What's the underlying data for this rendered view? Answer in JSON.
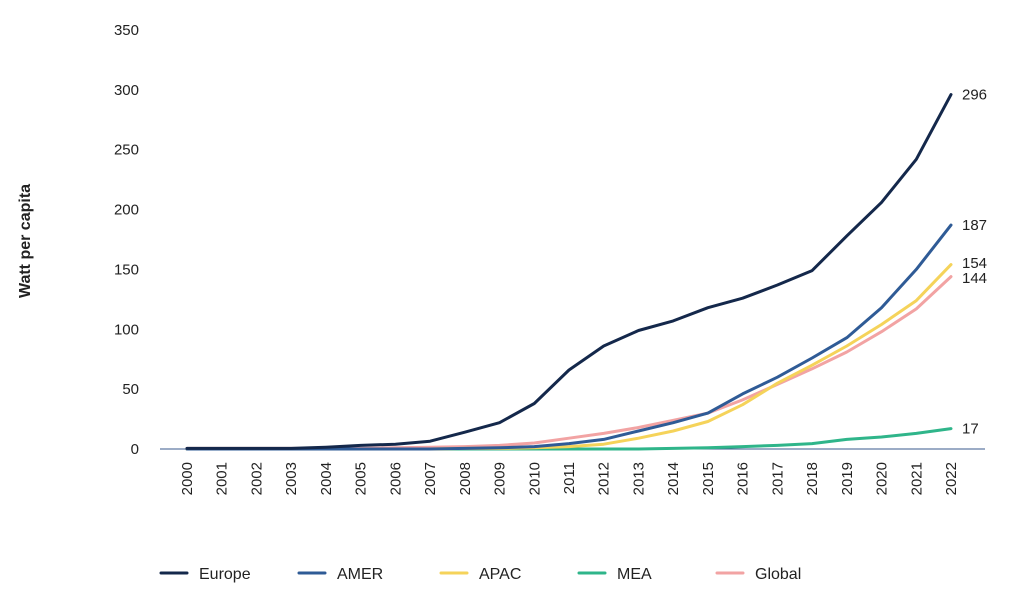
{
  "chart_data": {
    "type": "line",
    "title": "",
    "xlabel": "",
    "ylabel": "Watt per capita",
    "ylim": [
      0,
      350
    ],
    "yticks": [
      0,
      50,
      100,
      150,
      200,
      250,
      300,
      350
    ],
    "grid": false,
    "legend_position": "bottom",
    "x": [
      "2000",
      "2001",
      "2002",
      "2003",
      "2004",
      "2005",
      "2006",
      "2007",
      "2008",
      "2009",
      "2010",
      "2011",
      "2012",
      "2013",
      "2014",
      "2015",
      "2016",
      "2017",
      "2018",
      "2019",
      "2020",
      "2021",
      "2022"
    ],
    "series": [
      {
        "name": "Europe",
        "color": "#14284b",
        "end_label": "296",
        "values": [
          0.5,
          0.5,
          0.5,
          0.5,
          1.5,
          3,
          4,
          6.5,
          14,
          22,
          38,
          66,
          86,
          99,
          107,
          118,
          126,
          137,
          149,
          178,
          206,
          242,
          296
        ]
      },
      {
        "name": "AMER",
        "color": "#2f5b96",
        "end_label": "187",
        "values": [
          0,
          0,
          0,
          0,
          0,
          0,
          0,
          0,
          0.5,
          1,
          2,
          4.5,
          8,
          15,
          22,
          30,
          46,
          60,
          76,
          93,
          118,
          150,
          187
        ]
      },
      {
        "name": "APAC",
        "color": "#f5d35a",
        "end_label": "154",
        "values": [
          0,
          0,
          0,
          0,
          0,
          0,
          0,
          0,
          0.5,
          0.5,
          1,
          2,
          4,
          9,
          15,
          23,
          37,
          55,
          70,
          86,
          104,
          124,
          154
        ]
      },
      {
        "name": "MEA",
        "color": "#2fb58a",
        "end_label": "17",
        "values": [
          0,
          0,
          0,
          0,
          0,
          0,
          0,
          0,
          0,
          0,
          0,
          0,
          0,
          0,
          0.5,
          1,
          2,
          3,
          4.5,
          8,
          10,
          13,
          17
        ]
      },
      {
        "name": "Global",
        "color": "#f2a3a3",
        "end_label": "144",
        "values": [
          0.5,
          0.5,
          0.5,
          0.5,
          0.5,
          0.5,
          1,
          1.5,
          2,
          3,
          5,
          9,
          13,
          18,
          24,
          30,
          41,
          54,
          67,
          81,
          98,
          117,
          144
        ]
      }
    ]
  }
}
